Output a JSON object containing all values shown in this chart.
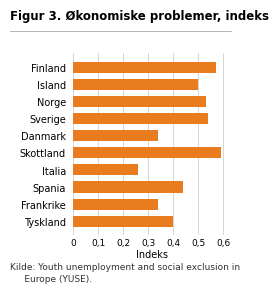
{
  "title": "Figur 3. Økonomiske problemer, indeks",
  "categories": [
    "Finland",
    "Island",
    "Norge",
    "Sverige",
    "Danmark",
    "Skottland",
    "Italia",
    "Spania",
    "Frankrike",
    "Tyskland"
  ],
  "values": [
    0.57,
    0.5,
    0.53,
    0.54,
    0.34,
    0.59,
    0.26,
    0.44,
    0.34,
    0.4
  ],
  "bar_color": "#E87C1E",
  "xlabel": "Indeks",
  "xlim": [
    0,
    0.63
  ],
  "xticks": [
    0,
    0.1,
    0.2,
    0.3,
    0.4,
    0.5,
    0.6
  ],
  "xticklabels": [
    "0",
    "0,1",
    "0,2",
    "0,3",
    "0,4",
    "0,5",
    "0,6"
  ],
  "caption_line1": "Kilde: Youth unemployment and social exclusion in",
  "caption_line2": "     Europe (YUSE).",
  "background_color": "#ffffff",
  "grid_color": "#d0d0d0",
  "title_fontsize": 8.5,
  "label_fontsize": 7,
  "tick_fontsize": 6.5,
  "caption_fontsize": 6.5,
  "bar_height": 0.65
}
